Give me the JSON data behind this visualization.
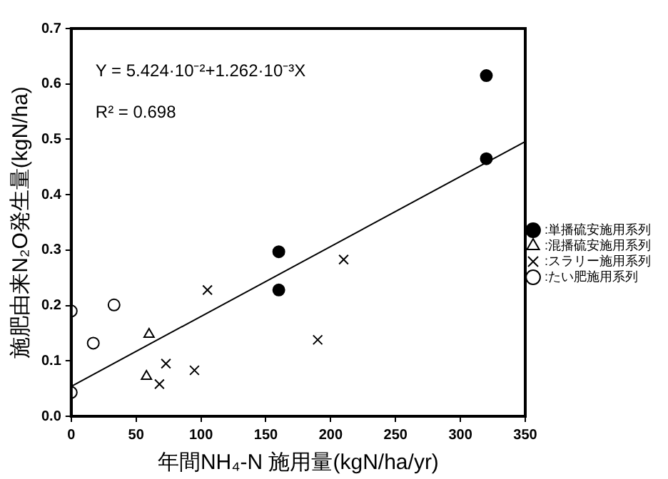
{
  "chart_data": {
    "type": "scatter",
    "xlabel": "年間NH₄-N 施用量(kgN/ha/yr)",
    "ylabel": "施肥由来N₂O発生量(kgN/ha)",
    "annotations": [
      "Y = 5.424·10⁻²+1.262·10⁻³X",
      "R² = 0.698"
    ],
    "series": [
      {
        "name": ":単播硫安施用系列",
        "color": "#000000",
        "marker": "circle",
        "x": [
          320,
          320,
          160,
          160
        ],
        "values": [
          0.615,
          0.465,
          0.297,
          0.228
        ]
      },
      {
        "name": ":混播硫安施用系列",
        "color": "#000000",
        "marker": "triangle",
        "x": [
          60,
          58
        ],
        "values": [
          0.148,
          0.072
        ]
      },
      {
        "name": ":スラリー施用系列",
        "color": "#000000",
        "marker": "cross",
        "x": [
          105,
          210,
          190,
          73,
          68,
          95
        ],
        "values": [
          0.228,
          0.283,
          0.138,
          0.095,
          0.058,
          0.083
        ]
      },
      {
        "name": ":たい肥施用系列",
        "color": "#000000",
        "marker": "circle",
        "x": [
          0,
          17,
          33,
          0
        ],
        "values": [
          0.19,
          0.132,
          0.201,
          0.043
        ]
      },
      {
        "type": "line",
        "color": "#000000",
        "marker": "none",
        "x": [
          0,
          350
        ],
        "values": [
          0.054,
          0.496
        ]
      }
    ],
    "xlim": [
      0,
      350
    ],
    "xticks": [
      0,
      50,
      100,
      150,
      200,
      250,
      300,
      350
    ],
    "ylim": [
      0,
      0.7
    ],
    "yticks": [
      {
        "value": 0,
        "label": "0.0"
      },
      {
        "value": 0.1,
        "label": "0.1"
      },
      {
        "value": 0.2,
        "label": "0.2"
      },
      {
        "value": 0.3,
        "label": "0.3"
      },
      {
        "value": 0.4,
        "label": "0.4"
      },
      {
        "value": 0.5,
        "label": "0.5"
      },
      {
        "value": 0.6,
        "label": "0.6"
      },
      {
        "value": 0.7,
        "label": "0.7"
      }
    ],
    "grid": false,
    "legend": "right"
  }
}
